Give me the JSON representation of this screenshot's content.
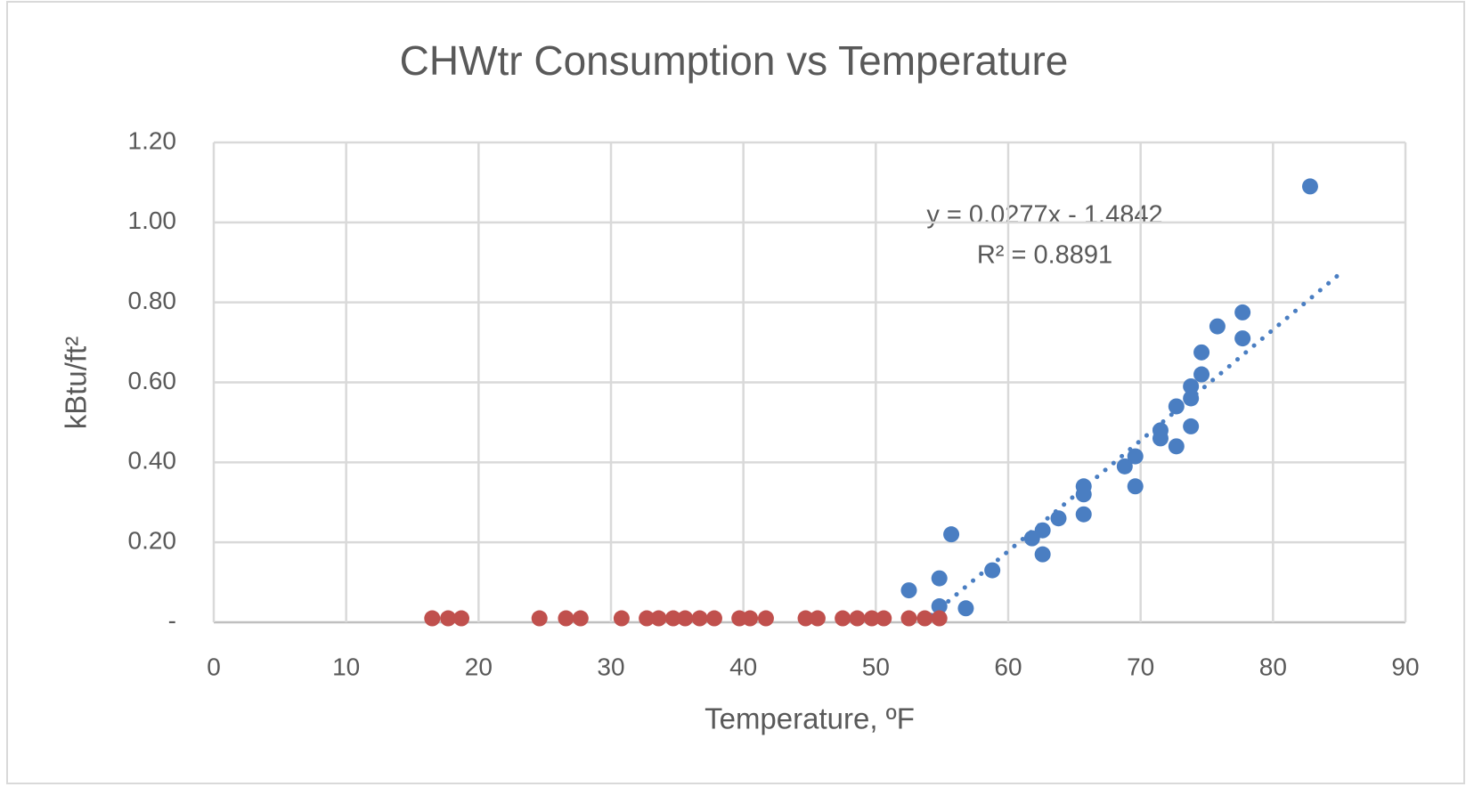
{
  "chart_data": {
    "type": "scatter",
    "title": "CHWtr Consumption vs Temperature",
    "x_label": "Temperature, ºF",
    "y_label": "kBtu/ft²",
    "xlim": [
      0,
      90
    ],
    "xticks": [
      0,
      10,
      20,
      30,
      40,
      50,
      60,
      70,
      80,
      90
    ],
    "ylim": [
      0,
      1.2
    ],
    "yticks": [
      {
        "value": 0,
        "label": "-"
      },
      {
        "value": 0.2,
        "label": "0.20"
      },
      {
        "value": 0.4,
        "label": "0.40"
      },
      {
        "value": 0.6,
        "label": "0.60"
      },
      {
        "value": 0.8,
        "label": "0.80"
      },
      {
        "value": 1.0,
        "label": "1.00"
      },
      {
        "value": 1.2,
        "label": "1.20"
      }
    ],
    "grid": true,
    "series": [
      {
        "color": "#4a7ec2",
        "x": [
          52.5,
          54.8,
          54.8,
          55.7,
          56.8,
          58.8,
          61.8,
          62.6,
          62.6,
          63.8,
          65.7,
          65.7,
          65.7,
          68.8,
          69.6,
          69.6,
          71.5,
          71.5,
          72.7,
          72.7,
          73.8,
          73.8,
          73.8,
          74.6,
          74.6,
          75.8,
          77.7,
          77.7,
          82.8
        ],
        "values": [
          0.08,
          0.11,
          0.04,
          0.22,
          0.035,
          0.13,
          0.21,
          0.23,
          0.17,
          0.26,
          0.34,
          0.32,
          0.27,
          0.39,
          0.415,
          0.34,
          0.48,
          0.46,
          0.54,
          0.44,
          0.59,
          0.56,
          0.49,
          0.675,
          0.62,
          0.74,
          0.775,
          0.71,
          1.09
        ]
      },
      {
        "color": "#c0504d",
        "x": [
          16.5,
          17.7,
          18.7,
          24.6,
          26.6,
          27.7,
          30.8,
          32.7,
          33.6,
          34.7,
          35.6,
          36.7,
          37.8,
          39.7,
          40.5,
          41.7,
          44.7,
          45.6,
          47.5,
          48.6,
          49.7,
          50.6,
          52.5,
          53.7,
          54.8
        ],
        "values": [
          0.01,
          0.01,
          0.01,
          0.01,
          0.01,
          0.01,
          0.01,
          0.01,
          0.01,
          0.01,
          0.01,
          0.01,
          0.01,
          0.01,
          0.01,
          0.01,
          0.01,
          0.01,
          0.01,
          0.01,
          0.01,
          0.01,
          0.01,
          0.01,
          0.01
        ]
      }
    ],
    "trendline": {
      "slope": 0.0277,
      "intercept": -1.4842,
      "x_range": [
        53.6,
        85
      ],
      "color": "#4a7ec2",
      "style": "dotted"
    },
    "annotations": [
      "y = 0.0277x - 1.4842",
      "R² = 0.8891"
    ]
  }
}
